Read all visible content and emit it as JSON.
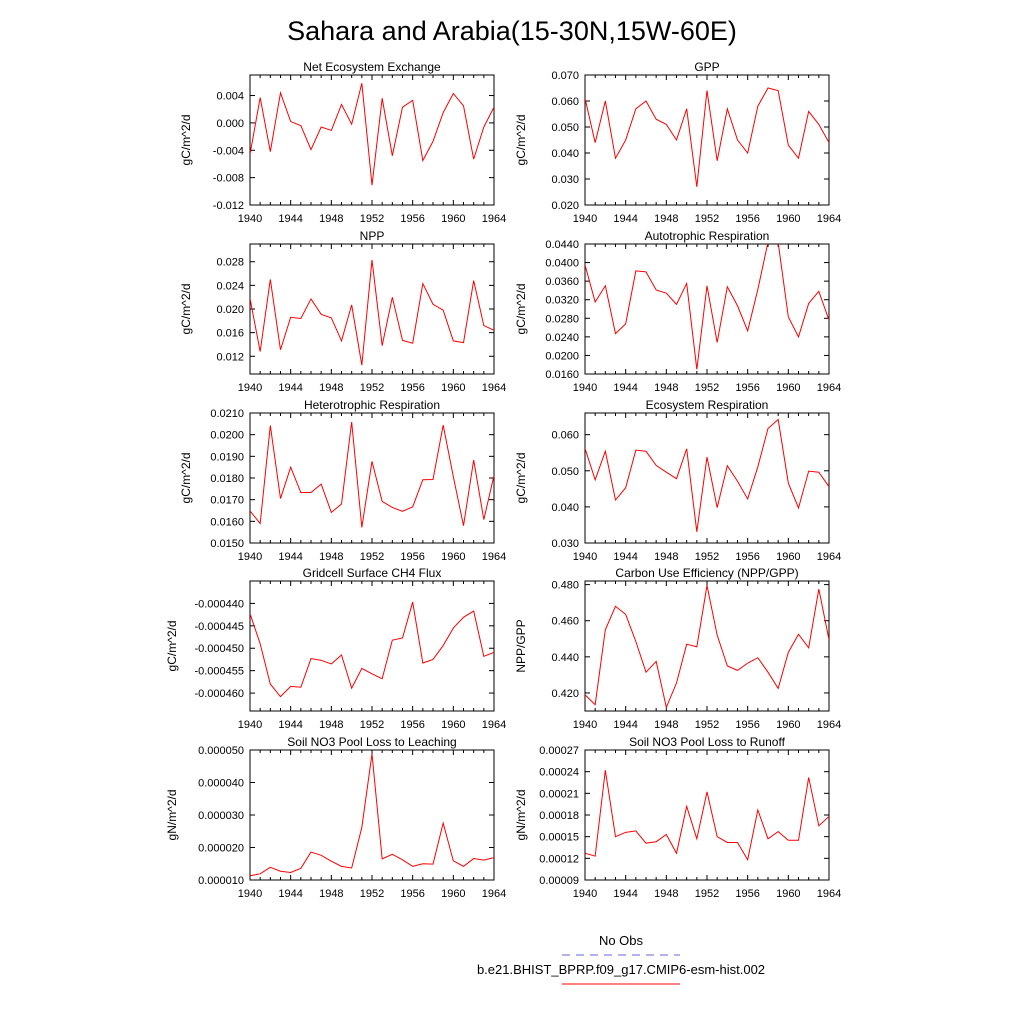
{
  "page": {
    "title": "Sahara and Arabia(15-30N,15W-60E)",
    "legend": [
      {
        "label": "No Obs",
        "color": "#6666dd",
        "style": "dashed"
      },
      {
        "label": "b.e21.BHIST_BPRP.f09_g17.CMIP6-esm-hist.002",
        "color": "#ff0000",
        "style": "solid"
      }
    ]
  },
  "chart_data": [
    {
      "type": "line",
      "title": "Net Ecosystem Exchange",
      "ylabel": "gC/m^2/d",
      "x": [
        1940,
        1941,
        1942,
        1943,
        1944,
        1945,
        1946,
        1947,
        1948,
        1949,
        1950,
        1951,
        1952,
        1953,
        1954,
        1955,
        1956,
        1957,
        1958,
        1959,
        1960,
        1961,
        1962,
        1963,
        1964
      ],
      "xlim": [
        1940,
        1964
      ],
      "xticks": [
        "1940",
        "1944",
        "1948",
        "1952",
        "1956",
        "1960",
        "1964"
      ],
      "ylim": [
        -0.012,
        0.007
      ],
      "yticks": [
        "-0.012",
        "-0.008",
        "-0.004",
        "0.000",
        "0.004"
      ],
      "series": [
        {
          "color": "#ff0000",
          "values": [
            -0.0046,
            0.0037,
            -0.0042,
            0.0044,
            0.0002,
            -0.0004,
            -0.0039,
            -0.0006,
            -0.0011,
            0.0027,
            -0.0002,
            0.0058,
            -0.0091,
            0.0036,
            -0.0048,
            0.0023,
            0.0033,
            -0.0055,
            -0.0027,
            0.0015,
            0.0043,
            0.0025,
            -0.0053,
            -0.0006,
            0.0023
          ]
        }
      ]
    },
    {
      "type": "line",
      "title": "GPP",
      "ylabel": "gC/m^2/d",
      "x": [
        1940,
        1941,
        1942,
        1943,
        1944,
        1945,
        1946,
        1947,
        1948,
        1949,
        1950,
        1951,
        1952,
        1953,
        1954,
        1955,
        1956,
        1957,
        1958,
        1959,
        1960,
        1961,
        1962,
        1963,
        1964
      ],
      "xlim": [
        1940,
        1964
      ],
      "xticks": [
        "1940",
        "1944",
        "1948",
        "1952",
        "1956",
        "1960",
        "1964"
      ],
      "ylim": [
        0.02,
        0.07
      ],
      "yticks": [
        "0.020",
        "0.030",
        "0.040",
        "0.050",
        "0.060",
        "0.070"
      ],
      "series": [
        {
          "color": "#ff0000",
          "values": [
            0.061,
            0.044,
            0.06,
            0.038,
            0.045,
            0.057,
            0.06,
            0.053,
            0.051,
            0.045,
            0.057,
            0.027,
            0.064,
            0.037,
            0.057,
            0.045,
            0.04,
            0.058,
            0.065,
            0.064,
            0.043,
            0.038,
            0.056,
            0.051,
            0.044
          ]
        }
      ]
    },
    {
      "type": "line",
      "title": "NPP",
      "ylabel": "gC/m^2/d",
      "x": [
        1940,
        1941,
        1942,
        1943,
        1944,
        1945,
        1946,
        1947,
        1948,
        1949,
        1950,
        1951,
        1952,
        1953,
        1954,
        1955,
        1956,
        1957,
        1958,
        1959,
        1960,
        1961,
        1962,
        1963,
        1964
      ],
      "xlim": [
        1940,
        1964
      ],
      "xticks": [
        "1940",
        "1944",
        "1948",
        "1952",
        "1956",
        "1960",
        "1964"
      ],
      "ylim": [
        0.009,
        0.031
      ],
      "yticks": [
        "0.012",
        "0.016",
        "0.020",
        "0.024",
        "0.028"
      ],
      "series": [
        {
          "color": "#ff0000",
          "values": [
            0.0218,
            0.0128,
            0.025,
            0.0131,
            0.0186,
            0.0184,
            0.0217,
            0.0191,
            0.0185,
            0.0146,
            0.0207,
            0.0105,
            0.0283,
            0.0138,
            0.022,
            0.0147,
            0.0142,
            0.0243,
            0.0208,
            0.0198,
            0.0146,
            0.0143,
            0.0248,
            0.0172,
            0.0164
          ]
        }
      ]
    },
    {
      "type": "line",
      "title": "Autotrophic Respiration",
      "ylabel": "gC/m^2/d",
      "x": [
        1940,
        1941,
        1942,
        1943,
        1944,
        1945,
        1946,
        1947,
        1948,
        1949,
        1950,
        1951,
        1952,
        1953,
        1954,
        1955,
        1956,
        1957,
        1958,
        1959,
        1960,
        1961,
        1962,
        1963,
        1964
      ],
      "xlim": [
        1940,
        1964
      ],
      "xticks": [
        "1940",
        "1944",
        "1948",
        "1952",
        "1956",
        "1960",
        "1964"
      ],
      "ylim": [
        0.016,
        0.044
      ],
      "yticks": [
        "0.0160",
        "0.0200",
        "0.0240",
        "0.0280",
        "0.0320",
        "0.0360",
        "0.0400",
        "0.0440"
      ],
      "series": [
        {
          "color": "#ff0000",
          "values": [
            0.0395,
            0.0315,
            0.035,
            0.0247,
            0.0268,
            0.0382,
            0.038,
            0.0341,
            0.0334,
            0.031,
            0.0355,
            0.017,
            0.035,
            0.0228,
            0.0348,
            0.0307,
            0.0253,
            0.0342,
            0.0444,
            0.0443,
            0.0283,
            0.024,
            0.0312,
            0.0338,
            0.0276
          ]
        }
      ]
    },
    {
      "type": "line",
      "title": "Heterotrophic Respiration",
      "ylabel": "gC/m^2/d",
      "x": [
        1940,
        1941,
        1942,
        1943,
        1944,
        1945,
        1946,
        1947,
        1948,
        1949,
        1950,
        1951,
        1952,
        1953,
        1954,
        1955,
        1956,
        1957,
        1958,
        1959,
        1960,
        1961,
        1962,
        1963,
        1964
      ],
      "xlim": [
        1940,
        1964
      ],
      "xticks": [
        "1940",
        "1944",
        "1948",
        "1952",
        "1956",
        "1960",
        "1964"
      ],
      "ylim": [
        0.015,
        0.021
      ],
      "yticks": [
        "0.0150",
        "0.0160",
        "0.0170",
        "0.0180",
        "0.0190",
        "0.0200",
        "0.0210"
      ],
      "series": [
        {
          "color": "#ff0000",
          "values": [
            0.01648,
            0.0159,
            0.02042,
            0.01705,
            0.0185,
            0.01733,
            0.01733,
            0.01772,
            0.01641,
            0.0168,
            0.02058,
            0.01572,
            0.01877,
            0.01692,
            0.01664,
            0.01646,
            0.01667,
            0.01792,
            0.01793,
            0.02044,
            0.01806,
            0.0158,
            0.01883,
            0.01608,
            0.01812
          ]
        }
      ]
    },
    {
      "type": "line",
      "title": "Ecosystem Respiration",
      "ylabel": "gC/m^2/d",
      "x": [
        1940,
        1941,
        1942,
        1943,
        1944,
        1945,
        1946,
        1947,
        1948,
        1949,
        1950,
        1951,
        1952,
        1953,
        1954,
        1955,
        1956,
        1957,
        1958,
        1959,
        1960,
        1961,
        1962,
        1963,
        1964
      ],
      "xlim": [
        1940,
        1964
      ],
      "xticks": [
        "1940",
        "1944",
        "1948",
        "1952",
        "1956",
        "1960",
        "1964"
      ],
      "ylim": [
        0.03,
        0.066
      ],
      "yticks": [
        "0.030",
        "0.040",
        "0.050",
        "0.060"
      ],
      "series": [
        {
          "color": "#ff0000",
          "values": [
            0.0562,
            0.0475,
            0.0554,
            0.0419,
            0.0453,
            0.0557,
            0.0554,
            0.0515,
            0.0496,
            0.0478,
            0.0561,
            0.0331,
            0.0538,
            0.0398,
            0.0514,
            0.0471,
            0.0422,
            0.0511,
            0.0617,
            0.0642,
            0.0466,
            0.0397,
            0.0499,
            0.0496,
            0.0456
          ]
        }
      ]
    },
    {
      "type": "line",
      "title": "Gridcell Surface CH4 Flux",
      "ylabel": "gC/m^2/d",
      "x": [
        1940,
        1941,
        1942,
        1943,
        1944,
        1945,
        1946,
        1947,
        1948,
        1949,
        1950,
        1951,
        1952,
        1953,
        1954,
        1955,
        1956,
        1957,
        1958,
        1959,
        1960,
        1961,
        1962,
        1963,
        1964
      ],
      "xlim": [
        1940,
        1964
      ],
      "xticks": [
        "1940",
        "1944",
        "1948",
        "1952",
        "1956",
        "1960",
        "1964"
      ],
      "ylim": [
        -0.000464,
        -0.000435
      ],
      "yticks": [
        "-0.000460",
        "-0.000455",
        "-0.000450",
        "-0.000445",
        "-0.000440"
      ],
      "series": [
        {
          "color": "#ff0000",
          "values": [
            -0.0004423,
            -0.000449,
            -0.000458,
            -0.0004608,
            -0.0004585,
            -0.0004587,
            -0.0004523,
            -0.0004527,
            -0.0004535,
            -0.0004515,
            -0.0004589,
            -0.0004545,
            -0.0004557,
            -0.0004568,
            -0.0004482,
            -0.0004477,
            -0.0004397,
            -0.0004533,
            -0.0004525,
            -0.0004494,
            -0.0004455,
            -0.0004431,
            -0.0004417,
            -0.0004518,
            -0.0004509
          ]
        }
      ]
    },
    {
      "type": "line",
      "title": "Carbon Use Efficiency (NPP/GPP)",
      "ylabel": "NPP/GPP",
      "x": [
        1940,
        1941,
        1942,
        1943,
        1944,
        1945,
        1946,
        1947,
        1948,
        1949,
        1950,
        1951,
        1952,
        1953,
        1954,
        1955,
        1956,
        1957,
        1958,
        1959,
        1960,
        1961,
        1962,
        1963,
        1964
      ],
      "xlim": [
        1940,
        1964
      ],
      "xticks": [
        "1940",
        "1944",
        "1948",
        "1952",
        "1956",
        "1960",
        "1964"
      ],
      "ylim": [
        0.41,
        0.482
      ],
      "yticks": [
        "0.420",
        "0.440",
        "0.460",
        "0.480"
      ],
      "series": [
        {
          "color": "#ff0000",
          "values": [
            0.419,
            0.4135,
            0.455,
            0.468,
            0.4635,
            0.4485,
            0.4315,
            0.4375,
            0.412,
            0.4255,
            0.447,
            0.4455,
            0.4795,
            0.452,
            0.435,
            0.4325,
            0.4365,
            0.4395,
            0.4315,
            0.4225,
            0.4425,
            0.4525,
            0.445,
            0.4775,
            0.4495
          ]
        }
      ]
    },
    {
      "type": "line",
      "title": "Soil NO3 Pool Loss to Leaching",
      "ylabel": "gN/m^2/d",
      "x": [
        1940,
        1941,
        1942,
        1943,
        1944,
        1945,
        1946,
        1947,
        1948,
        1949,
        1950,
        1951,
        1952,
        1953,
        1954,
        1955,
        1956,
        1957,
        1958,
        1959,
        1960,
        1961,
        1962,
        1963,
        1964
      ],
      "xlim": [
        1940,
        1964
      ],
      "xticks": [
        "1940",
        "1944",
        "1948",
        "1952",
        "1956",
        "1960",
        "1964"
      ],
      "ylim": [
        1e-05,
        5e-05
      ],
      "yticks": [
        "0.000010",
        "0.000020",
        "0.000030",
        "0.000040",
        "0.000050"
      ],
      "series": [
        {
          "color": "#ff0000",
          "values": [
            1.13e-05,
            1.19e-05,
            1.39e-05,
            1.27e-05,
            1.23e-05,
            1.36e-05,
            1.86e-05,
            1.76e-05,
            1.58e-05,
            1.42e-05,
            1.37e-05,
            2.62e-05,
            4.88e-05,
            1.65e-05,
            1.79e-05,
            1.62e-05,
            1.42e-05,
            1.5e-05,
            1.49e-05,
            2.75e-05,
            1.59e-05,
            1.42e-05,
            1.66e-05,
            1.61e-05,
            1.69e-05
          ]
        }
      ]
    },
    {
      "type": "line",
      "title": "Soil NO3 Pool Loss to Runoff",
      "ylabel": "gN/m^2/d",
      "x": [
        1940,
        1941,
        1942,
        1943,
        1944,
        1945,
        1946,
        1947,
        1948,
        1949,
        1950,
        1951,
        1952,
        1953,
        1954,
        1955,
        1956,
        1957,
        1958,
        1959,
        1960,
        1961,
        1962,
        1963,
        1964
      ],
      "xlim": [
        1940,
        1964
      ],
      "xticks": [
        "1940",
        "1944",
        "1948",
        "1952",
        "1956",
        "1960",
        "1964"
      ],
      "ylim": [
        9e-05,
        0.00027
      ],
      "yticks": [
        "0.00009",
        "0.00012",
        "0.00015",
        "0.00018",
        "0.00021",
        "0.00024",
        "0.00027"
      ],
      "series": [
        {
          "color": "#ff0000",
          "values": [
            0.000127,
            0.000123,
            0.000242,
            0.00015,
            0.000156,
            0.000158,
            0.000141,
            0.000143,
            0.000153,
            0.000127,
            0.000192,
            0.000147,
            0.000212,
            0.00015,
            0.000142,
            0.000142,
            0.000118,
            0.000187,
            0.000147,
            0.000157,
            0.000145,
            0.000145,
            0.000232,
            0.000165,
            0.000178
          ]
        }
      ]
    }
  ]
}
